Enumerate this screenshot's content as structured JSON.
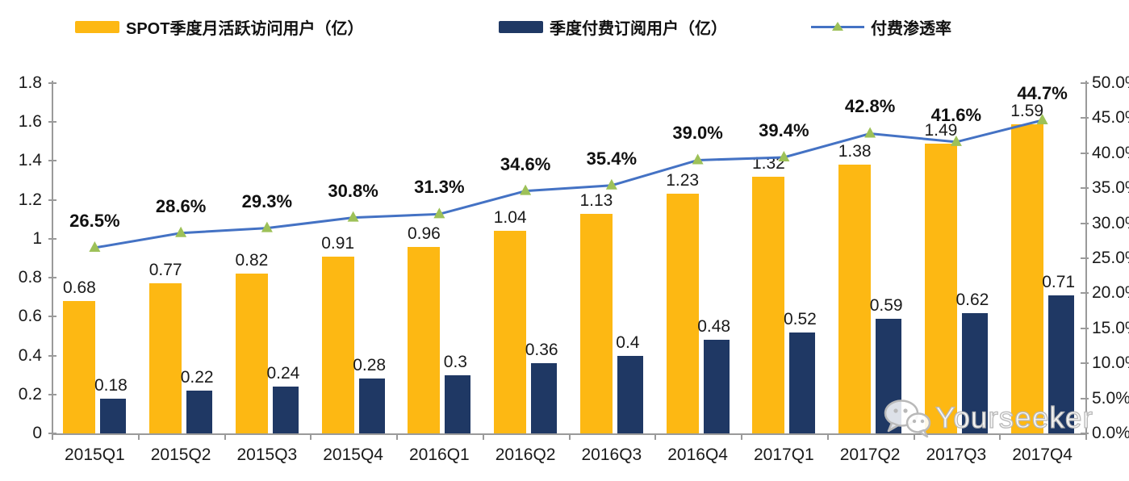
{
  "legend": {
    "items": [
      {
        "label": "SPOT季度月活跃访问用户（亿）",
        "swatch": "bar",
        "color": "#FDB813"
      },
      {
        "label": "季度付费订阅用户（亿）",
        "swatch": "bar",
        "color": "#1F3864"
      },
      {
        "label": "付费渗透率",
        "swatch": "line",
        "color": "#4472C4",
        "marker_color": "#9DC158"
      }
    ]
  },
  "chart_data": {
    "type": "combo-bar-line",
    "categories": [
      "2015Q1",
      "2015Q2",
      "2015Q3",
      "2015Q4",
      "2016Q1",
      "2016Q2",
      "2016Q3",
      "2016Q4",
      "2017Q1",
      "2017Q2",
      "2017Q3",
      "2017Q4"
    ],
    "series": [
      {
        "name": "SPOT季度月活跃访问用户（亿）",
        "type": "bar",
        "axis": "left",
        "color": "#FDB813",
        "values": [
          0.68,
          0.77,
          0.82,
          0.91,
          0.96,
          1.04,
          1.13,
          1.23,
          1.32,
          1.38,
          1.49,
          1.59
        ],
        "labels": [
          "0.68",
          "0.77",
          "0.82",
          "0.91",
          "0.96",
          "1.04",
          "1.13",
          "1.23",
          "1.32",
          "1.38",
          "1.49",
          "1.59"
        ]
      },
      {
        "name": "季度付费订阅用户（亿）",
        "type": "bar",
        "axis": "left",
        "color": "#1F3864",
        "values": [
          0.18,
          0.22,
          0.24,
          0.28,
          0.3,
          0.36,
          0.4,
          0.48,
          0.52,
          0.59,
          0.62,
          0.71
        ],
        "labels": [
          "0.18",
          "0.22",
          "0.24",
          "0.28",
          "0.3",
          "0.36",
          "0.4",
          "0.48",
          "0.52",
          "0.59",
          "0.62",
          "0.71"
        ]
      },
      {
        "name": "付费渗透率",
        "type": "line",
        "axis": "right",
        "color": "#4472C4",
        "marker": "triangle",
        "marker_color": "#9DC158",
        "values": [
          26.5,
          28.6,
          29.3,
          30.8,
          31.3,
          34.6,
          35.4,
          39.0,
          39.4,
          42.8,
          41.6,
          44.7
        ],
        "labels": [
          "26.5%",
          "28.6%",
          "29.3%",
          "30.8%",
          "31.3%",
          "34.6%",
          "35.4%",
          "39.0%",
          "39.4%",
          "42.8%",
          "41.6%",
          "44.7%"
        ]
      }
    ],
    "left_axis": {
      "min": 0,
      "max": 1.8,
      "ticks": [
        "0",
        "0.2",
        "0.4",
        "0.6",
        "0.8",
        "1",
        "1.2",
        "1.4",
        "1.6",
        "1.8"
      ]
    },
    "right_axis": {
      "min": 0,
      "max": 50,
      "ticks": [
        "0.0%",
        "5.0%",
        "10.0%",
        "15.0%",
        "20.0%",
        "25.0%",
        "30.0%",
        "35.0%",
        "40.0%",
        "45.0%",
        "50.0%"
      ]
    },
    "grid": false,
    "legend_position": "top"
  },
  "watermark": {
    "text": "Yourseeker",
    "icon": "wechat-icon"
  }
}
